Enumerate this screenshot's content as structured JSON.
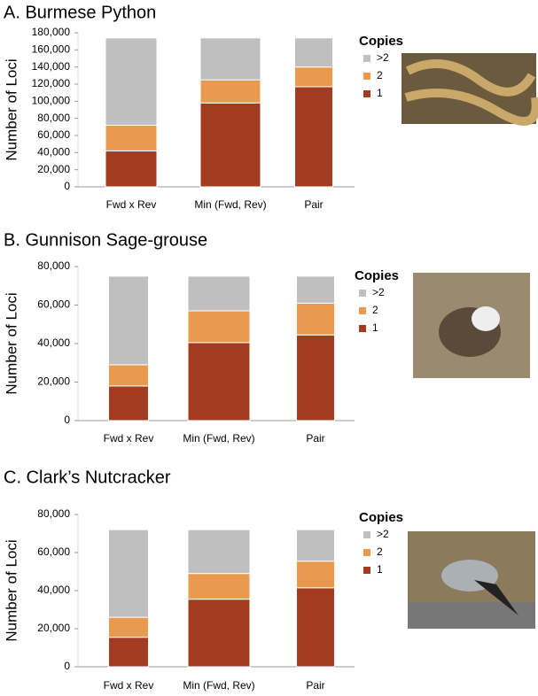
{
  "chart_data": [
    {
      "type": "bar",
      "stacked": true,
      "title": "A. Burmese Python",
      "y_label": "Number of Loci",
      "legend_title": "Copies",
      "categories": [
        "Fwd x Rev",
        "Min (Fwd, Rev)",
        "Pair"
      ],
      "series": [
        {
          "name": "1",
          "color": "#a33b20",
          "values": [
            42000,
            98000,
            117000
          ]
        },
        {
          "name": "2",
          "color": "#e99a4e",
          "values": [
            30000,
            27000,
            23000
          ]
        },
        {
          "name": ">2",
          "color": "#bfbfbf",
          "values": [
            102000,
            49000,
            34000
          ]
        }
      ],
      "ylim": [
        0,
        180000
      ],
      "yticks": [
        0,
        {
          "value": 20000,
          "label": "20,000"
        },
        {
          "value": 40000,
          "label": "40,000"
        },
        {
          "value": 60000,
          "label": "60,000"
        },
        {
          "value": 80000,
          "label": "80,000"
        },
        {
          "value": 100000,
          "label": "100,000"
        },
        {
          "value": 120000,
          "label": "120,000"
        },
        {
          "value": 140000,
          "label": "140,000"
        },
        {
          "value": 160000,
          "label": "160,000"
        },
        {
          "value": 180000,
          "label": "180,000"
        }
      ]
    },
    {
      "type": "bar",
      "stacked": true,
      "title": "B. Gunnison Sage-grouse",
      "y_label": "Number of Loci",
      "legend_title": "Copies",
      "categories": [
        "Fwd x Rev",
        "Min (Fwd, Rev)",
        "Pair"
      ],
      "series": [
        {
          "name": "1",
          "color": "#a33b20",
          "values": [
            18000,
            40500,
            44500
          ]
        },
        {
          "name": "2",
          "color": "#e99a4e",
          "values": [
            11000,
            16500,
            16500
          ]
        },
        {
          "name": ">2",
          "color": "#bfbfbf",
          "values": [
            46000,
            18000,
            14000
          ]
        }
      ],
      "ylim": [
        0,
        80000
      ],
      "yticks": [
        0,
        {
          "value": 20000,
          "label": "20,000"
        },
        {
          "value": 40000,
          "label": "40,000"
        },
        {
          "value": 60000,
          "label": "60,000"
        },
        {
          "value": 80000,
          "label": "80,000"
        }
      ]
    },
    {
      "type": "bar",
      "stacked": true,
      "title": "C. Clark’s Nutcracker",
      "y_label": "Number of Loci",
      "legend_title": "Copies",
      "categories": [
        "Fwd x Rev",
        "Min (Fwd, Rev)",
        "Pair"
      ],
      "series": [
        {
          "name": "1",
          "color": "#a33b20",
          "values": [
            15500,
            35500,
            41500
          ]
        },
        {
          "name": "2",
          "color": "#e99a4e",
          "values": [
            10500,
            13500,
            14000
          ]
        },
        {
          "name": ">2",
          "color": "#bfbfbf",
          "values": [
            46000,
            23000,
            16500
          ]
        }
      ],
      "ylim": [
        0,
        80000
      ],
      "yticks": [
        0,
        {
          "value": 20000,
          "label": "20,000"
        },
        {
          "value": 40000,
          "label": "40,000"
        },
        {
          "value": 60000,
          "label": "60,000"
        },
        {
          "value": 80000,
          "label": "80,000"
        }
      ]
    }
  ]
}
